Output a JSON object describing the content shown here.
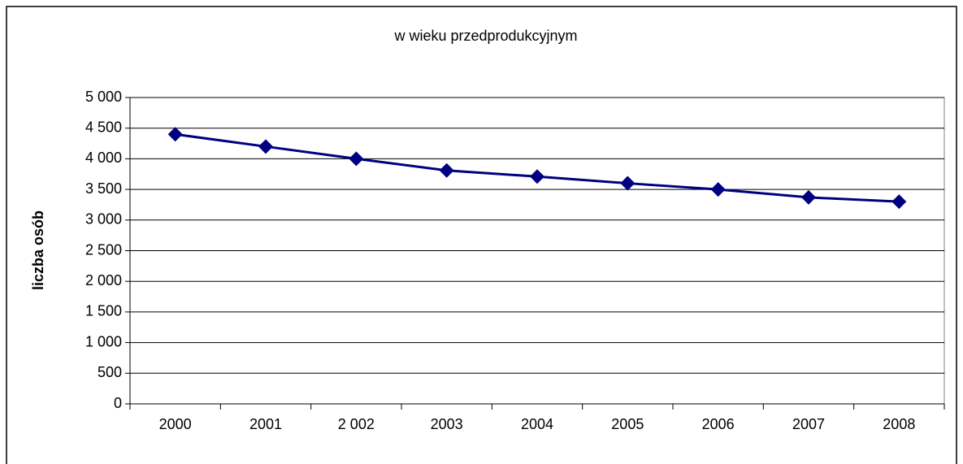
{
  "chart_data": {
    "type": "line",
    "title": "w wieku przedprodukcyjnym",
    "y_label": "liczba osób",
    "categories": [
      "2000",
      "2001",
      "2 002",
      "2003",
      "2004",
      "2005",
      "2006",
      "2007",
      "2008"
    ],
    "series": [
      {
        "name": "w wieku przedprodukcyjnym",
        "color": "#000080",
        "values": [
          4400,
          4200,
          4000,
          3810,
          3710,
          3600,
          3500,
          3370,
          3300
        ]
      }
    ],
    "ylim": [
      0,
      5000
    ],
    "yticks": [
      0,
      500,
      {
        "value": 1000,
        "label": "1 000"
      },
      {
        "value": 1500,
        "label": "1 500"
      },
      {
        "value": 2000,
        "label": "2 000"
      },
      {
        "value": 2500,
        "label": "2 500"
      },
      {
        "value": 3000,
        "label": "3 000"
      },
      {
        "value": 3500,
        "label": "3 500"
      },
      {
        "value": 4000,
        "label": "4 000"
      },
      {
        "value": 4500,
        "label": "4 500"
      },
      {
        "value": 5000,
        "label": "5 000"
      }
    ],
    "grid": true,
    "legend": false
  }
}
